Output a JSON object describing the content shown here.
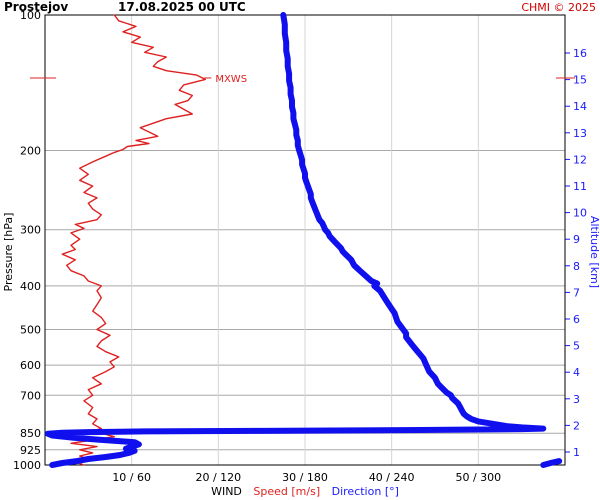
{
  "header": {
    "station": "Prostejov",
    "datetime": "17.08.2025 00 UTC",
    "credit": "CHMI © 2025"
  },
  "chart_data": {
    "type": "line",
    "y_axis": {
      "label": "Pressure [hPa]",
      "scale": "log",
      "reversed": true,
      "range": [
        1000,
        100
      ],
      "ticks": [
        100,
        200,
        300,
        400,
        500,
        600,
        700,
        850,
        925,
        1000
      ]
    },
    "right_axis": {
      "label": "Altitude [km]",
      "ticks": [
        1,
        2,
        3,
        4,
        5,
        6,
        7,
        8,
        9,
        10,
        11,
        12,
        13,
        14,
        15,
        16
      ]
    },
    "x_axis": {
      "label_prefix": "WIND",
      "label_speed": "Speed [m/s]",
      "label_direction": "Direction [°]",
      "speed_range": [
        0,
        60
      ],
      "direction_range": [
        0,
        360
      ],
      "tick_labels": [
        "10 / 60",
        "20 / 120",
        "30 / 180",
        "40 / 240",
        "50 / 300"
      ],
      "tick_speeds": [
        10,
        20,
        30,
        40,
        50
      ]
    },
    "grid": true,
    "annotations": [
      {
        "text": "MXWS",
        "pressure": 138,
        "speed": 18.5
      }
    ],
    "series": [
      {
        "key": "speed",
        "color": "#e02020",
        "points": [
          [
            1000,
            4.5
          ],
          [
            985,
            3.5
          ],
          [
            970,
            5.0
          ],
          [
            955,
            4.0
          ],
          [
            940,
            5.5
          ],
          [
            925,
            4.0
          ],
          [
            910,
            6.0
          ],
          [
            895,
            3.0
          ],
          [
            880,
            5.5
          ],
          [
            865,
            8.0
          ],
          [
            850,
            6.5
          ],
          [
            848,
            1.0
          ],
          [
            845,
            5.0
          ],
          [
            830,
            6.5
          ],
          [
            810,
            5.5
          ],
          [
            790,
            6.0
          ],
          [
            770,
            5.0
          ],
          [
            745,
            5.5
          ],
          [
            720,
            4.5
          ],
          [
            700,
            5.5
          ],
          [
            680,
            5.0
          ],
          [
            660,
            6.5
          ],
          [
            640,
            5.5
          ],
          [
            620,
            7.0
          ],
          [
            605,
            8.0
          ],
          [
            590,
            7.5
          ],
          [
            575,
            8.5
          ],
          [
            560,
            7.0
          ],
          [
            545,
            6.0
          ],
          [
            530,
            6.5
          ],
          [
            515,
            7.5
          ],
          [
            500,
            6.0
          ],
          [
            485,
            7.0
          ],
          [
            470,
            6.5
          ],
          [
            455,
            5.5
          ],
          [
            440,
            6.0
          ],
          [
            425,
            6.5
          ],
          [
            410,
            6.0
          ],
          [
            400,
            6.5
          ],
          [
            390,
            5.0
          ],
          [
            380,
            4.5
          ],
          [
            370,
            3.0
          ],
          [
            360,
            2.5
          ],
          [
            350,
            3.5
          ],
          [
            340,
            2.0
          ],
          [
            332,
            3.5
          ],
          [
            325,
            3.0
          ],
          [
            315,
            4.0
          ],
          [
            305,
            3.0
          ],
          [
            298,
            4.5
          ],
          [
            292,
            3.5
          ],
          [
            285,
            6.0
          ],
          [
            278,
            6.5
          ],
          [
            270,
            5.5
          ],
          [
            262,
            5.0
          ],
          [
            255,
            6.0
          ],
          [
            248,
            4.5
          ],
          [
            240,
            5.5
          ],
          [
            233,
            4.0
          ],
          [
            226,
            5.0
          ],
          [
            219,
            4.0
          ],
          [
            212,
            5.5
          ],
          [
            206,
            7.0
          ],
          [
            202,
            8.0
          ],
          [
            199,
            9.0
          ],
          [
            196,
            9.5
          ],
          [
            193,
            12.0
          ],
          [
            190,
            10.5
          ],
          [
            186,
            13.0
          ],
          [
            182,
            12.0
          ],
          [
            178,
            11.0
          ],
          [
            174,
            12.5
          ],
          [
            170,
            14.0
          ],
          [
            166,
            17.0
          ],
          [
            162,
            16.0
          ],
          [
            158,
            15.0
          ],
          [
            155,
            16.5
          ],
          [
            151,
            17.0
          ],
          [
            147,
            15.5
          ],
          [
            143,
            16.0
          ],
          [
            139,
            18.5
          ],
          [
            136,
            17.5
          ],
          [
            133,
            14.0
          ],
          [
            130,
            12.5
          ],
          [
            127,
            13.0
          ],
          [
            124,
            14.0
          ],
          [
            121,
            11.5
          ],
          [
            118,
            12.5
          ],
          [
            115,
            10.0
          ],
          [
            112,
            11.0
          ],
          [
            109,
            9.0
          ],
          [
            106,
            10.5
          ],
          [
            103,
            8.5
          ],
          [
            100,
            8.0
          ]
        ]
      },
      {
        "key": "direction",
        "color": "#1010ee",
        "points": [
          [
            1000,
            5
          ],
          [
            990,
            12
          ],
          [
            980,
            22
          ],
          [
            970,
            30
          ],
          [
            960,
            42
          ],
          [
            950,
            52
          ],
          [
            940,
            58
          ],
          [
            930,
            62
          ],
          [
            920,
            56
          ],
          [
            910,
            60
          ],
          [
            900,
            65
          ],
          [
            890,
            62
          ],
          [
            880,
            40
          ],
          [
            870,
            20
          ],
          [
            860,
            5
          ],
          [
            852,
            2
          ],
          [
            848,
            12
          ],
          [
            845,
            30
          ],
          [
            842,
            70
          ],
          [
            840,
            150
          ],
          [
            838,
            200
          ],
          [
            836,
            260
          ],
          [
            834,
            300
          ],
          [
            832,
            330
          ],
          [
            830,
            345
          ],
          [
            825,
            330
          ],
          [
            820,
            320
          ],
          [
            810,
            310
          ],
          [
            800,
            300
          ],
          [
            790,
            295
          ],
          [
            780,
            292
          ],
          [
            770,
            290
          ],
          [
            760,
            289
          ],
          [
            750,
            288
          ],
          [
            740,
            287
          ],
          [
            730,
            286
          ],
          [
            720,
            284
          ],
          [
            710,
            282
          ],
          [
            700,
            281
          ],
          [
            690,
            278
          ],
          [
            680,
            276
          ],
          [
            670,
            274
          ],
          [
            660,
            272
          ],
          [
            650,
            271
          ],
          [
            640,
            270
          ],
          [
            630,
            268
          ],
          [
            620,
            266
          ],
          [
            610,
            265
          ],
          [
            600,
            264
          ],
          [
            590,
            263
          ],
          [
            580,
            262
          ],
          [
            570,
            260
          ],
          [
            560,
            258
          ],
          [
            550,
            256
          ],
          [
            540,
            254
          ],
          [
            530,
            252
          ],
          [
            520,
            250
          ],
          [
            510,
            250
          ],
          [
            500,
            248
          ],
          [
            490,
            246
          ],
          [
            480,
            244
          ],
          [
            470,
            243
          ],
          [
            460,
            242
          ],
          [
            450,
            240
          ],
          [
            440,
            238
          ],
          [
            430,
            236
          ],
          [
            420,
            234
          ],
          [
            410,
            232
          ],
          [
            400,
            228
          ],
          [
            395,
            230
          ],
          [
            390,
            226
          ],
          [
            385,
            224
          ],
          [
            380,
            222
          ],
          [
            375,
            220
          ],
          [
            370,
            218
          ],
          [
            365,
            216
          ],
          [
            360,
            214
          ],
          [
            355,
            213
          ],
          [
            350,
            212
          ],
          [
            345,
            210
          ],
          [
            340,
            208
          ],
          [
            335,
            206
          ],
          [
            330,
            205
          ],
          [
            325,
            203
          ],
          [
            320,
            201
          ],
          [
            315,
            199
          ],
          [
            310,
            197
          ],
          [
            305,
            196
          ],
          [
            300,
            194
          ],
          [
            295,
            193
          ],
          [
            290,
            192
          ],
          [
            285,
            190
          ],
          [
            280,
            189
          ],
          [
            275,
            188
          ],
          [
            270,
            187
          ],
          [
            265,
            186
          ],
          [
            260,
            185
          ],
          [
            255,
            184
          ],
          [
            250,
            184
          ],
          [
            245,
            183
          ],
          [
            240,
            182
          ],
          [
            235,
            181
          ],
          [
            230,
            180
          ],
          [
            225,
            180
          ],
          [
            220,
            179
          ],
          [
            215,
            178
          ],
          [
            210,
            178
          ],
          [
            205,
            177
          ],
          [
            200,
            176
          ],
          [
            195,
            175
          ],
          [
            190,
            175
          ],
          [
            185,
            174
          ],
          [
            180,
            174
          ],
          [
            175,
            173
          ],
          [
            170,
            172
          ],
          [
            165,
            172
          ],
          [
            160,
            171
          ],
          [
            155,
            171
          ],
          [
            150,
            170
          ],
          [
            145,
            170
          ],
          [
            140,
            169
          ],
          [
            135,
            169
          ],
          [
            130,
            168
          ],
          [
            125,
            168
          ],
          [
            120,
            167
          ],
          [
            115,
            167
          ],
          [
            110,
            166
          ],
          [
            105,
            166
          ],
          [
            100,
            165
          ]
        ]
      }
    ]
  }
}
